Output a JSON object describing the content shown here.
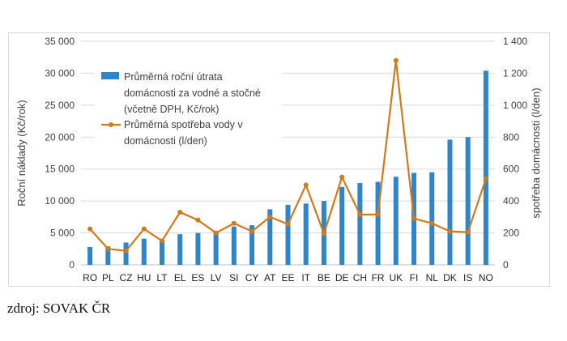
{
  "chart_data": {
    "type": "bar+line",
    "categories": [
      "RO",
      "PL",
      "CZ",
      "HU",
      "LT",
      "EL",
      "ES",
      "LV",
      "SI",
      "CY",
      "AT",
      "EE",
      "IT",
      "BE",
      "DE",
      "CH",
      "FR",
      "UK",
      "FI",
      "NL",
      "DK",
      "IS",
      "NO"
    ],
    "series": [
      {
        "name": "Průměrná roční útrata domácnosti za vodné a stočné (včetně DPH, Kč/rok)",
        "type": "bar",
        "axis": "left",
        "color": "#2e86c9",
        "values": [
          2800,
          2900,
          3500,
          4100,
          3700,
          4800,
          5000,
          5300,
          6000,
          6200,
          8700,
          9400,
          9600,
          10000,
          12200,
          12800,
          13000,
          13800,
          14400,
          14500,
          19600,
          20000,
          30400
        ]
      },
      {
        "name": "Průměrná spotřeba vody v domácnosti  (l/den)",
        "type": "line",
        "axis": "right",
        "color": "#d07a1a",
        "values": [
          225,
          100,
          88,
          225,
          150,
          330,
          280,
          200,
          260,
          210,
          300,
          255,
          500,
          195,
          550,
          315,
          315,
          1280,
          290,
          260,
          210,
          205,
          540
        ]
      }
    ],
    "y_left": {
      "label": "Roční náklady (Kč/rok)",
      "min": 0,
      "max": 35000,
      "ticks": [
        0,
        5000,
        10000,
        15000,
        20000,
        25000,
        30000,
        35000
      ],
      "tick_labels": [
        "0",
        "5 000",
        "10 000",
        "15 000",
        "20 000",
        "25 000",
        "30 000",
        "35 000"
      ]
    },
    "y_right": {
      "label": "spotřeba domácnosti (l/den)",
      "min": 0,
      "max": 1400,
      "ticks": [
        0,
        200,
        400,
        600,
        800,
        1000,
        1200,
        1400
      ],
      "tick_labels": [
        "0",
        "200",
        "400",
        "600",
        "800",
        "1 000",
        "1 200",
        "1 400"
      ]
    },
    "legend": {
      "position": "top-left",
      "bar_lines": [
        "Průměrná roční útrata",
        "domácnosti za vodné a stočné",
        "(včetně DPH, Kč/rok)"
      ],
      "line_lines": [
        "Průměrná spotřeba vody v",
        "domácnosti  (l/den)"
      ]
    },
    "grid": true
  },
  "source_note": "zdroj: SOVAK ČR"
}
